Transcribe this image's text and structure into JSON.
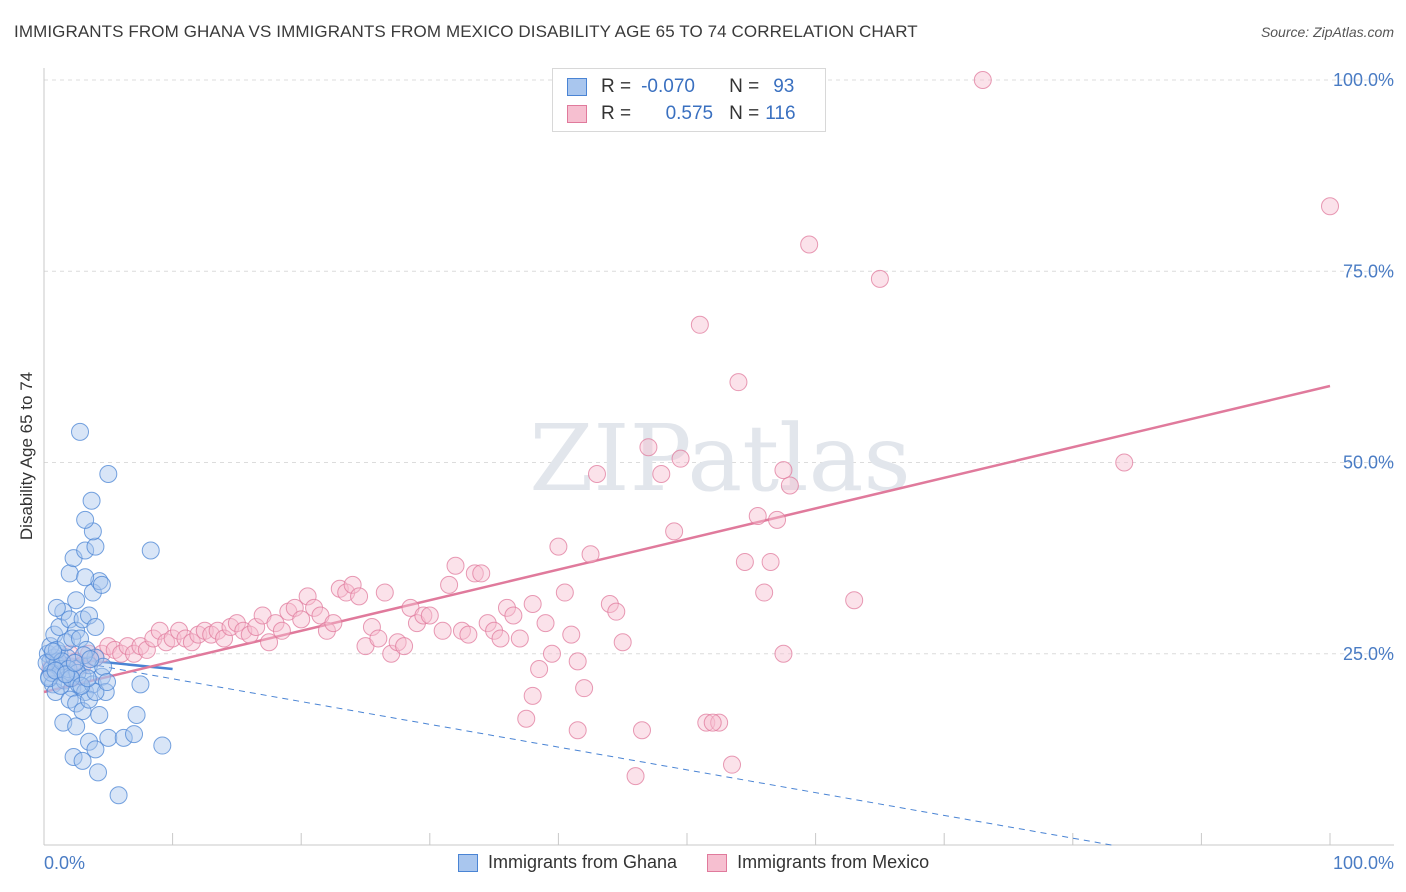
{
  "title": "IMMIGRANTS FROM GHANA VS IMMIGRANTS FROM MEXICO DISABILITY AGE 65 TO 74 CORRELATION CHART",
  "source": "Source: ZipAtlas.com",
  "watermark": "ZIPatlas",
  "legend": {
    "rows": [
      {
        "r_label": "R =",
        "r_value": "-0.070",
        "n_label": "N =",
        "n_value": "93",
        "color": "#a9c6ee",
        "stroke": "#4a84d4"
      },
      {
        "r_label": "R =",
        "r_value": "0.575",
        "n_label": "N =",
        "n_value": "116",
        "color": "#f6bfd0",
        "stroke": "#e07a9c"
      }
    ]
  },
  "bottom_legend": [
    "Immigrants from Ghana",
    "Immigrants from Mexico"
  ],
  "chart_data": {
    "type": "scatter",
    "title": "IMMIGRANTS FROM GHANA VS IMMIGRANTS FROM MEXICO DISABILITY AGE 65 TO 74 CORRELATION CHART",
    "xlabel": "",
    "ylabel": "Disability Age 65 to 74",
    "xlim": [
      0,
      100
    ],
    "ylim": [
      0,
      100
    ],
    "x_tick_labels": [
      "0.0%",
      "100.0%"
    ],
    "y_tick_labels": [
      "25.0%",
      "50.0%",
      "75.0%",
      "100.0%"
    ],
    "y_ticks": [
      25,
      50,
      75,
      100
    ],
    "grid": true,
    "series": [
      {
        "name": "Immigrants from Ghana",
        "color": "#4a84d4",
        "fill": "#a9c6ee",
        "trend": {
          "x": [
            0,
            10
          ],
          "y": [
            24.7,
            23.0
          ],
          "extended_x": [
            0,
            83
          ],
          "extended_y": [
            24.7,
            0
          ]
        },
        "points": [
          [
            0.3,
            25
          ],
          [
            0.5,
            24
          ],
          [
            0.6,
            23
          ],
          [
            0.4,
            22
          ],
          [
            0.8,
            24.5
          ],
          [
            1.0,
            23.5
          ],
          [
            1.2,
            25
          ],
          [
            0.7,
            21
          ],
          [
            1.5,
            22.5
          ],
          [
            0.9,
            20
          ],
          [
            1.1,
            24
          ],
          [
            1.3,
            23
          ],
          [
            1.6,
            21.5
          ],
          [
            1.8,
            24.5
          ],
          [
            2.0,
            22
          ],
          [
            2.2,
            20.5
          ],
          [
            2.5,
            23
          ],
          [
            2.7,
            21
          ],
          [
            3.0,
            22
          ],
          [
            3.2,
            20
          ],
          [
            3.5,
            23.5
          ],
          [
            3.8,
            21
          ],
          [
            4.0,
            24.5
          ],
          [
            4.5,
            22
          ],
          [
            4.8,
            20
          ],
          [
            0.5,
            26
          ],
          [
            0.8,
            27.5
          ],
          [
            1.2,
            28.5
          ],
          [
            1.5,
            30.5
          ],
          [
            2.0,
            29.5
          ],
          [
            2.5,
            28
          ],
          [
            3.0,
            29.5
          ],
          [
            3.5,
            30
          ],
          [
            4.0,
            28.5
          ],
          [
            1.0,
            31
          ],
          [
            2.5,
            32
          ],
          [
            3.8,
            33
          ],
          [
            2.0,
            35.5
          ],
          [
            2.3,
            37.5
          ],
          [
            3.2,
            38.5
          ],
          [
            4.0,
            39
          ],
          [
            3.8,
            41
          ],
          [
            3.2,
            42.5
          ],
          [
            3.7,
            45
          ],
          [
            5.0,
            48.5
          ],
          [
            2.8,
            54
          ],
          [
            8.3,
            38.5
          ],
          [
            4.3,
            34.5
          ],
          [
            3.2,
            35
          ],
          [
            4.5,
            34
          ],
          [
            2.0,
            19
          ],
          [
            2.5,
            18.5
          ],
          [
            3.0,
            17.5
          ],
          [
            3.5,
            19
          ],
          [
            4.0,
            20
          ],
          [
            4.3,
            17
          ],
          [
            1.5,
            16
          ],
          [
            2.5,
            15.5
          ],
          [
            3.5,
            13.5
          ],
          [
            4.0,
            12.5
          ],
          [
            2.3,
            11.5
          ],
          [
            3.0,
            11
          ],
          [
            4.2,
            9.5
          ],
          [
            5.0,
            14
          ],
          [
            6.2,
            14
          ],
          [
            7.0,
            14.5
          ],
          [
            7.2,
            17
          ],
          [
            9.2,
            13
          ],
          [
            5.8,
            6.5
          ],
          [
            7.5,
            21
          ],
          [
            1.0,
            25.5
          ],
          [
            1.7,
            26.5
          ],
          [
            2.2,
            27
          ],
          [
            2.8,
            27
          ],
          [
            3.3,
            25.5
          ],
          [
            0.6,
            22.5
          ],
          [
            1.4,
            24
          ],
          [
            1.9,
            23
          ],
          [
            2.6,
            22.5
          ],
          [
            3.1,
            24.8
          ],
          [
            0.2,
            23.8
          ],
          [
            0.4,
            21.8
          ],
          [
            0.9,
            22.8
          ],
          [
            1.3,
            20.8
          ],
          [
            2.1,
            21.8
          ],
          [
            2.9,
            20.8
          ],
          [
            3.4,
            21.8
          ],
          [
            4.6,
            23.3
          ],
          [
            4.9,
            21.3
          ],
          [
            0.7,
            25.3
          ],
          [
            1.7,
            22.3
          ],
          [
            2.4,
            23.8
          ],
          [
            3.6,
            24.3
          ]
        ]
      },
      {
        "name": "Immigrants from Mexico",
        "color": "#e07a9c",
        "fill": "#f6bfd0",
        "trend": {
          "x": [
            0,
            100
          ],
          "y": [
            20,
            60
          ]
        },
        "points": [
          [
            0.5,
            23
          ],
          [
            1.0,
            24
          ],
          [
            1.5,
            22.5
          ],
          [
            2.0,
            25
          ],
          [
            2.5,
            24
          ],
          [
            3.0,
            23.5
          ],
          [
            3.5,
            25
          ],
          [
            4.0,
            24.5
          ],
          [
            4.5,
            25
          ],
          [
            5.0,
            26
          ],
          [
            5.5,
            25.5
          ],
          [
            6.0,
            25
          ],
          [
            6.5,
            26
          ],
          [
            7.0,
            25
          ],
          [
            7.5,
            26
          ],
          [
            8.0,
            25.5
          ],
          [
            8.5,
            27
          ],
          [
            9.0,
            28
          ],
          [
            9.5,
            26.5
          ],
          [
            10.0,
            27
          ],
          [
            10.5,
            28
          ],
          [
            11.0,
            27
          ],
          [
            11.5,
            26.5
          ],
          [
            12.0,
            27.5
          ],
          [
            12.5,
            28
          ],
          [
            13.0,
            27.5
          ],
          [
            13.5,
            28
          ],
          [
            14.0,
            27
          ],
          [
            14.5,
            28.5
          ],
          [
            15.0,
            29
          ],
          [
            15.5,
            28
          ],
          [
            16.0,
            27.5
          ],
          [
            16.5,
            28.5
          ],
          [
            17.0,
            30
          ],
          [
            17.5,
            26.5
          ],
          [
            18.0,
            29
          ],
          [
            18.5,
            28
          ],
          [
            19.0,
            30.5
          ],
          [
            19.5,
            31
          ],
          [
            20.0,
            29.5
          ],
          [
            20.5,
            32.5
          ],
          [
            21.0,
            31
          ],
          [
            21.5,
            30
          ],
          [
            22.0,
            28
          ],
          [
            22.5,
            29
          ],
          [
            23.0,
            33.5
          ],
          [
            23.5,
            33
          ],
          [
            24.0,
            34
          ],
          [
            24.5,
            32.5
          ],
          [
            25.0,
            26
          ],
          [
            25.5,
            28.5
          ],
          [
            26.0,
            27
          ],
          [
            26.5,
            33
          ],
          [
            27.0,
            25
          ],
          [
            27.5,
            26.5
          ],
          [
            28.0,
            26
          ],
          [
            28.5,
            31
          ],
          [
            29.0,
            29
          ],
          [
            29.5,
            30
          ],
          [
            30.0,
            30
          ],
          [
            31.0,
            28
          ],
          [
            31.5,
            34
          ],
          [
            32.0,
            36.5
          ],
          [
            32.5,
            28
          ],
          [
            33.0,
            27.5
          ],
          [
            33.5,
            35.5
          ],
          [
            34.0,
            35.5
          ],
          [
            34.5,
            29
          ],
          [
            35.0,
            28
          ],
          [
            35.5,
            27
          ],
          [
            36.0,
            31
          ],
          [
            36.5,
            30
          ],
          [
            37.0,
            27
          ],
          [
            38.0,
            31.5
          ],
          [
            38.5,
            23
          ],
          [
            39.0,
            29
          ],
          [
            39.5,
            25
          ],
          [
            40.0,
            39
          ],
          [
            40.5,
            33
          ],
          [
            41.0,
            27.5
          ],
          [
            41.5,
            24
          ],
          [
            42.0,
            20.5
          ],
          [
            42.5,
            38
          ],
          [
            44.0,
            31.5
          ],
          [
            44.5,
            30.5
          ],
          [
            45.0,
            26.5
          ],
          [
            43.0,
            48.5
          ],
          [
            47.0,
            52
          ],
          [
            48.0,
            48.5
          ],
          [
            49.0,
            41
          ],
          [
            49.5,
            50.5
          ],
          [
            51.0,
            68
          ],
          [
            51.5,
            16
          ],
          [
            52.5,
            16
          ],
          [
            54.0,
            60.5
          ],
          [
            52.0,
            16
          ],
          [
            41.5,
            15
          ],
          [
            46.5,
            15
          ],
          [
            37.5,
            16.5
          ],
          [
            38.0,
            19.5
          ],
          [
            46.0,
            9
          ],
          [
            53.5,
            10.5
          ],
          [
            54.5,
            37
          ],
          [
            55.5,
            43
          ],
          [
            56.0,
            33
          ],
          [
            56.5,
            37
          ],
          [
            57.0,
            42.5
          ],
          [
            57.5,
            49
          ],
          [
            58.0,
            47
          ],
          [
            59.5,
            78.5
          ],
          [
            63.0,
            32
          ],
          [
            65.0,
            74
          ],
          [
            73.0,
            100
          ],
          [
            84.0,
            50
          ],
          [
            100.0,
            83.5
          ],
          [
            57.5,
            25
          ]
        ]
      }
    ]
  }
}
